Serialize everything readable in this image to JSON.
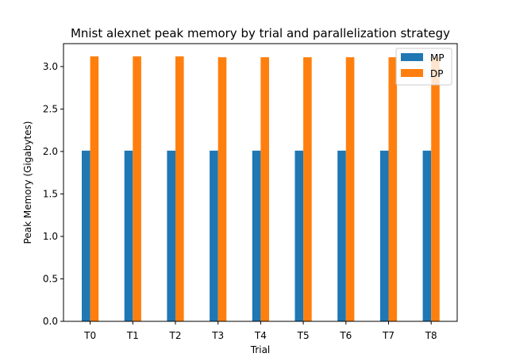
{
  "chart_data": {
    "type": "bar",
    "title": "Mnist alexnet peak memory by trial and parallelization strategy",
    "xlabel": "Trial",
    "ylabel": "Peak Memory (Gigabytes)",
    "categories": [
      "T0",
      "T1",
      "T2",
      "T3",
      "T4",
      "T5",
      "T6",
      "T7",
      "T8"
    ],
    "ylim": [
      0,
      3.27
    ],
    "yticks": [
      0.0,
      0.5,
      1.0,
      1.5,
      2.0,
      2.5,
      3.0
    ],
    "ytick_labels": [
      "0.0",
      "0.5",
      "1.0",
      "1.5",
      "2.0",
      "2.5",
      "3.0"
    ],
    "grid": false,
    "legend_position": "top-right",
    "series": [
      {
        "name": "MP",
        "color": "#1f77b4",
        "values": [
          2.01,
          2.01,
          2.01,
          2.01,
          2.01,
          2.01,
          2.01,
          2.01,
          2.01
        ]
      },
      {
        "name": "DP",
        "color": "#ff7f0e",
        "values": [
          3.12,
          3.12,
          3.12,
          3.11,
          3.11,
          3.11,
          3.11,
          3.11,
          3.11
        ]
      }
    ]
  }
}
